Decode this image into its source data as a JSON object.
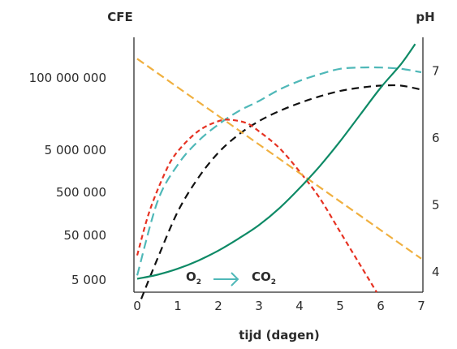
{
  "chart_data": {
    "type": "line",
    "xlabel": "tijd (dagen)",
    "ylabel_left": "CFE",
    "ylabel_right": "pH",
    "xlim": [
      0,
      7
    ],
    "x_ticks": [
      0,
      1,
      2,
      3,
      4,
      5,
      6,
      7
    ],
    "y_left_ticks": [
      "5 000",
      "50 000",
      "500 000",
      "5 000 000",
      "100 000 000"
    ],
    "y_right_ticks": [
      4,
      5,
      6,
      7
    ],
    "y_right_lim": [
      3.7,
      7.5
    ],
    "legend": {
      "from": "O",
      "from_sub": "2",
      "to": "CO",
      "to_sub": "2",
      "arrow_color": "#4fb8b8"
    },
    "colors": {
      "teal": "#4fb8b8",
      "black": "#111111",
      "red": "#e63222",
      "orange": "#f0b040",
      "green": "#0e8a66",
      "axis": "#2b2b2b"
    },
    "series": [
      {
        "color": "#4fb8b8",
        "style": "dashed",
        "points": [
          [
            0,
            3.95
          ],
          [
            0.5,
            5.05
          ],
          [
            1,
            5.6
          ],
          [
            1.5,
            5.95
          ],
          [
            2,
            6.2
          ],
          [
            2.5,
            6.4
          ],
          [
            3,
            6.55
          ],
          [
            3.5,
            6.72
          ],
          [
            4,
            6.85
          ],
          [
            4.5,
            6.95
          ],
          [
            5,
            7.03
          ],
          [
            5.5,
            7.05
          ],
          [
            6,
            7.05
          ],
          [
            6.5,
            7.03
          ],
          [
            7,
            6.98
          ]
        ]
      },
      {
        "color": "#111111",
        "style": "dashed",
        "points": [
          [
            0.1,
            3.6
          ],
          [
            0.5,
            4.2
          ],
          [
            1,
            4.9
          ],
          [
            1.5,
            5.4
          ],
          [
            2,
            5.78
          ],
          [
            2.5,
            6.05
          ],
          [
            3,
            6.25
          ],
          [
            3.5,
            6.4
          ],
          [
            4,
            6.52
          ],
          [
            4.5,
            6.62
          ],
          [
            5,
            6.7
          ],
          [
            5.5,
            6.75
          ],
          [
            6,
            6.78
          ],
          [
            6.5,
            6.78
          ],
          [
            7,
            6.72
          ]
        ]
      },
      {
        "color": "#e63222",
        "style": "dashed",
        "points": [
          [
            0,
            4.25
          ],
          [
            0.3,
            4.9
          ],
          [
            0.7,
            5.5
          ],
          [
            1,
            5.8
          ],
          [
            1.5,
            6.1
          ],
          [
            2,
            6.25
          ],
          [
            2.3,
            6.27
          ],
          [
            2.7,
            6.22
          ],
          [
            3,
            6.1
          ],
          [
            3.5,
            5.85
          ],
          [
            4,
            5.5
          ],
          [
            4.5,
            5.1
          ],
          [
            5,
            4.6
          ],
          [
            5.5,
            4.1
          ],
          [
            5.9,
            3.7
          ]
        ]
      },
      {
        "color": "#f0b040",
        "style": "dashed",
        "points": [
          [
            0,
            7.18
          ],
          [
            7,
            4.2
          ]
        ]
      },
      {
        "color": "#0e8a66",
        "style": "solid",
        "points": [
          [
            0,
            3.9
          ],
          [
            0.5,
            3.96
          ],
          [
            1,
            4.05
          ],
          [
            1.5,
            4.17
          ],
          [
            2,
            4.32
          ],
          [
            2.5,
            4.5
          ],
          [
            3,
            4.7
          ],
          [
            3.5,
            4.95
          ],
          [
            4,
            5.25
          ],
          [
            4.5,
            5.58
          ],
          [
            5,
            5.95
          ],
          [
            5.5,
            6.35
          ],
          [
            6,
            6.75
          ],
          [
            6.5,
            7.1
          ],
          [
            6.85,
            7.4
          ]
        ]
      }
    ]
  }
}
